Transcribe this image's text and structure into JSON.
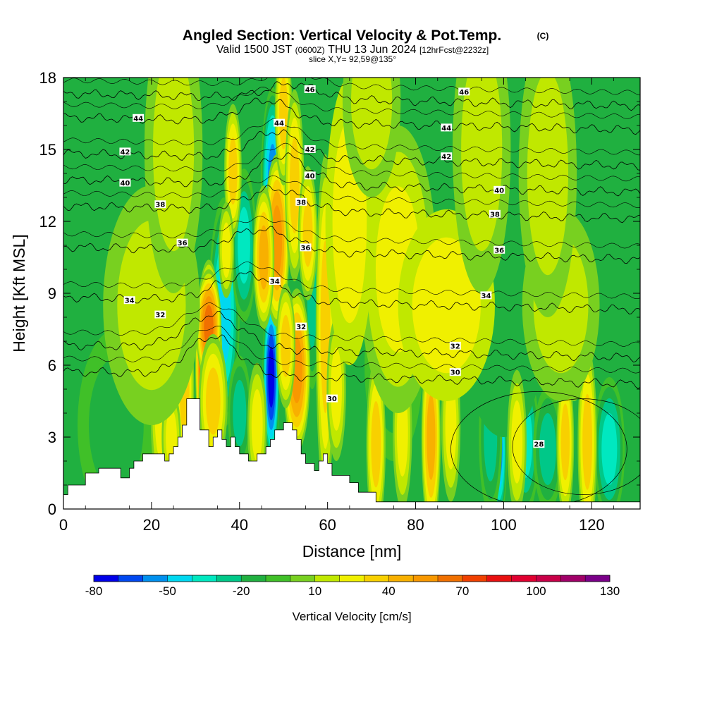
{
  "title": {
    "main": "Angled Section: Vertical Velocity & Pot.Temp.",
    "mark": "(C)",
    "valid_a": "Valid 1500 JST",
    "valid_b": "(0600Z)",
    "valid_c": "THU 13 Jun 2024",
    "valid_d": "[12hrFcst@2232z]",
    "slice": "slice X,Y= 92,59@135°"
  },
  "chart_data": {
    "type": "heatmap",
    "xlabel": "Distance [nm]",
    "ylabel": "Height [Kft MSL]",
    "xlim": [
      0,
      131
    ],
    "ylim": [
      0,
      18
    ],
    "xticks": [
      0,
      20,
      40,
      60,
      80,
      100,
      120
    ],
    "yticks": [
      0,
      3,
      6,
      9,
      12,
      15,
      18
    ],
    "colorbar": {
      "label": "Vertical Velocity [cm/s]",
      "ticks": [
        -80,
        -50,
        -20,
        10,
        40,
        70,
        100,
        130
      ],
      "min": -80,
      "max": 130,
      "step": 10,
      "colors": [
        "#0000e8",
        "#0048f0",
        "#0090ee",
        "#00d8f0",
        "#00e8c0",
        "#00c888",
        "#20b040",
        "#40c028",
        "#78d020",
        "#c0e800",
        "#f0f000",
        "#f8d000",
        "#f8b000",
        "#f89800",
        "#f07000",
        "#f04000",
        "#e81010",
        "#e00030",
        "#c80048",
        "#a00068",
        "#7a0088"
      ]
    },
    "terrain": [
      [
        0,
        0.6
      ],
      [
        1,
        0.6
      ],
      [
        1,
        1
      ],
      [
        5,
        1
      ],
      [
        5,
        1.5
      ],
      [
        8,
        1.5
      ],
      [
        8,
        1.7
      ],
      [
        13,
        1.7
      ],
      [
        13,
        1.3
      ],
      [
        15,
        1.3
      ],
      [
        15,
        1.7
      ],
      [
        16,
        1.7
      ],
      [
        16,
        2
      ],
      [
        18,
        2
      ],
      [
        18,
        2.3
      ],
      [
        23,
        2.3
      ],
      [
        23,
        2
      ],
      [
        24,
        2
      ],
      [
        24,
        2.3
      ],
      [
        25,
        2.3
      ],
      [
        25,
        2.6
      ],
      [
        26,
        2.6
      ],
      [
        26,
        3
      ],
      [
        27,
        3
      ],
      [
        27,
        3.5
      ],
      [
        28,
        3.5
      ],
      [
        28,
        4.6
      ],
      [
        31,
        4.6
      ],
      [
        31,
        3.3
      ],
      [
        33,
        3.3
      ],
      [
        33,
        2.6
      ],
      [
        34,
        2.6
      ],
      [
        34,
        3
      ],
      [
        35,
        3
      ],
      [
        35,
        3.3
      ],
      [
        36,
        3.3
      ],
      [
        36,
        2.9
      ],
      [
        37,
        2.9
      ],
      [
        37,
        2.6
      ],
      [
        38,
        2.6
      ],
      [
        38,
        3
      ],
      [
        39,
        3
      ],
      [
        39,
        2.6
      ],
      [
        40,
        2.6
      ],
      [
        40,
        2.3
      ],
      [
        42,
        2.3
      ],
      [
        42,
        2
      ],
      [
        44,
        2
      ],
      [
        44,
        2.3
      ],
      [
        46,
        2.3
      ],
      [
        46,
        2.6
      ],
      [
        47,
        2.6
      ],
      [
        47,
        2.9
      ],
      [
        48,
        2.9
      ],
      [
        48,
        3.3
      ],
      [
        50,
        3.3
      ],
      [
        50,
        3.6
      ],
      [
        52,
        3.6
      ],
      [
        52,
        3.3
      ],
      [
        53,
        3.3
      ],
      [
        53,
        2.9
      ],
      [
        54,
        2.9
      ],
      [
        54,
        2.3
      ],
      [
        55,
        2.3
      ],
      [
        55,
        1.9
      ],
      [
        57,
        1.9
      ],
      [
        57,
        1.6
      ],
      [
        58,
        1.6
      ],
      [
        58,
        2
      ],
      [
        59,
        2
      ],
      [
        59,
        2.3
      ],
      [
        60,
        2.3
      ],
      [
        60,
        1.9
      ],
      [
        61,
        1.9
      ],
      [
        61,
        1.4
      ],
      [
        65,
        1.4
      ],
      [
        65,
        1.1
      ],
      [
        67,
        1.1
      ],
      [
        67,
        0.7
      ],
      [
        71,
        0.7
      ],
      [
        71,
        0.3
      ],
      [
        131,
        0.3
      ]
    ],
    "updrafts": [
      {
        "x": 33,
        "y": 6,
        "sx": 1.4,
        "sy": 2.2,
        "v": 110
      },
      {
        "x": 33,
        "y": 7.6,
        "sx": 1.3,
        "sy": 1.2,
        "v": 65
      },
      {
        "x": 34,
        "y": 4.5,
        "sx": 1.5,
        "sy": 1.4,
        "v": 40
      },
      {
        "x": 38.5,
        "y": 14.1,
        "sx": 0.9,
        "sy": 1.4,
        "v": 40
      },
      {
        "x": 37,
        "y": 10.8,
        "sx": 0.8,
        "sy": 1,
        "v": 25
      },
      {
        "x": 48.5,
        "y": 11.2,
        "sx": 1.3,
        "sy": 1.8,
        "v": 55
      },
      {
        "x": 45.5,
        "y": 10.5,
        "sx": 1.1,
        "sy": 1.5,
        "v": 45
      },
      {
        "x": 50,
        "y": 16.5,
        "sx": 0.9,
        "sy": 1.5,
        "v": 35
      },
      {
        "x": 52.5,
        "y": 13.5,
        "sx": 1,
        "sy": 2,
        "v": 40
      },
      {
        "x": 53,
        "y": 5.8,
        "sx": 1.4,
        "sy": 1.7,
        "v": 60
      },
      {
        "x": 50.5,
        "y": 6.8,
        "sx": 1,
        "sy": 1.3,
        "v": 40
      },
      {
        "x": 59.5,
        "y": 7.6,
        "sx": 1,
        "sy": 3.6,
        "v": 40
      },
      {
        "x": 55.5,
        "y": 11.5,
        "sx": 1,
        "sy": 1.4,
        "v": 35
      },
      {
        "x": 62,
        "y": 5,
        "sx": 1,
        "sy": 1.5,
        "v": 30
      },
      {
        "x": 22,
        "y": 4,
        "sx": 1,
        "sy": 1.6,
        "v": 30
      },
      {
        "x": 27.5,
        "y": 5,
        "sx": 1,
        "sy": 1.8,
        "v": 35
      },
      {
        "x": 24.5,
        "y": 3,
        "sx": 1,
        "sy": 1,
        "v": 25
      },
      {
        "x": 44,
        "y": 3.5,
        "sx": 1,
        "sy": 1.3,
        "v": 25
      },
      {
        "x": 71,
        "y": 2.7,
        "sx": 1,
        "sy": 1.8,
        "v": 35
      },
      {
        "x": 83.5,
        "y": 3,
        "sx": 1,
        "sy": 2,
        "v": 45
      },
      {
        "x": 77,
        "y": 3.2,
        "sx": 1,
        "sy": 1.6,
        "v": 30
      },
      {
        "x": 88,
        "y": 3.5,
        "sx": 1,
        "sy": 1.6,
        "v": 25
      },
      {
        "x": 114,
        "y": 2.8,
        "sx": 0.9,
        "sy": 1.6,
        "v": 40
      },
      {
        "x": 119,
        "y": 2.8,
        "sx": 1,
        "sy": 2,
        "v": 40
      },
      {
        "x": 103,
        "y": 2.8,
        "sx": 1,
        "sy": 1.5,
        "v": 30
      },
      {
        "x": 116,
        "y": 6.5,
        "sx": 1.2,
        "sy": 1,
        "v": 25
      },
      {
        "x": 76,
        "y": 10,
        "sx": 4,
        "sy": 3,
        "v": 25
      },
      {
        "x": 87,
        "y": 8.5,
        "sx": 5,
        "sy": 2,
        "v": 22
      },
      {
        "x": 113,
        "y": 8.5,
        "sx": 4,
        "sy": 2,
        "v": 20
      },
      {
        "x": 20,
        "y": 8.5,
        "sx": 5,
        "sy": 2.5,
        "v": 20
      },
      {
        "x": 65,
        "y": 12,
        "sx": 2.5,
        "sy": 3,
        "v": 22
      },
      {
        "x": 95,
        "y": 15,
        "sx": 3,
        "sy": 3,
        "v": 18
      },
      {
        "x": 110,
        "y": 14,
        "sx": 3,
        "sy": 3,
        "v": 18
      },
      {
        "x": 25,
        "y": 15,
        "sx": 3,
        "sy": 3,
        "v": 18
      },
      {
        "x": 70,
        "y": 17,
        "sx": 3,
        "sy": 2,
        "v": 18
      }
    ],
    "downdrafts": [
      {
        "x": 47.2,
        "y": 5.5,
        "sx": 0.9,
        "sy": 1.8,
        "v": -75
      },
      {
        "x": 47.5,
        "y": 13.6,
        "sx": 1.2,
        "sy": 2,
        "v": -55
      },
      {
        "x": 36.5,
        "y": 8.2,
        "sx": 1.6,
        "sy": 2.4,
        "v": -50
      },
      {
        "x": 41,
        "y": 11,
        "sx": 1.3,
        "sy": 1.6,
        "v": -35
      },
      {
        "x": 56.5,
        "y": 9,
        "sx": 0.9,
        "sy": 2,
        "v": -25
      },
      {
        "x": 99,
        "y": 2.5,
        "sx": 0.8,
        "sy": 1.5,
        "v": -60
      },
      {
        "x": 105,
        "y": 2.8,
        "sx": 1.4,
        "sy": 1.5,
        "v": -40
      },
      {
        "x": 97,
        "y": 3,
        "sx": 1.2,
        "sy": 1.6,
        "v": -30
      },
      {
        "x": 110,
        "y": 2.5,
        "sx": 1.5,
        "sy": 1.3,
        "v": -30
      },
      {
        "x": 124,
        "y": 2.5,
        "sx": 1.6,
        "sy": 1.5,
        "v": -35
      },
      {
        "x": 40,
        "y": 4,
        "sx": 1.2,
        "sy": 1.2,
        "v": -28
      },
      {
        "x": 12,
        "y": 3.5,
        "sx": 4,
        "sy": 2,
        "v": -15
      },
      {
        "x": 75,
        "y": 6,
        "sx": 3,
        "sy": 2,
        "v": -15
      },
      {
        "x": 90,
        "y": 12,
        "sx": 4,
        "sy": 3,
        "v": -12
      },
      {
        "x": 100,
        "y": 7,
        "sx": 4,
        "sy": 2,
        "v": -12
      }
    ],
    "isentropes": [
      {
        "base": 5.5,
        "amp": 1.6,
        "c": 34,
        "w": 8,
        "labels": [
          {
            "t": "30",
            "x": 61,
            "y": 4.6
          },
          {
            "t": "30",
            "x": 89,
            "y": 5.7
          }
        ]
      },
      {
        "base": 6.6,
        "amp": 1.4,
        "c": 34,
        "w": 9,
        "labels": [
          {
            "t": "32",
            "x": 22,
            "y": 8.1
          },
          {
            "t": "32",
            "x": 54,
            "y": 7.6
          },
          {
            "t": "32",
            "x": 89,
            "y": 6.8
          }
        ]
      },
      {
        "base": 8.6,
        "amp": 1.1,
        "c": 42,
        "w": 10,
        "labels": [
          {
            "t": "34",
            "x": 15,
            "y": 8.7
          },
          {
            "t": "34",
            "x": 48,
            "y": 9.5
          },
          {
            "t": "34",
            "x": 96,
            "y": 8.9
          }
        ]
      },
      {
        "base": 10.7,
        "amp": 0.9,
        "c": 45,
        "w": 10,
        "labels": [
          {
            "t": "36",
            "x": 27,
            "y": 11.1
          },
          {
            "t": "36",
            "x": 55,
            "y": 10.9
          },
          {
            "t": "36",
            "x": 99,
            "y": 10.8
          }
        ]
      },
      {
        "base": 12.4,
        "amp": 0.9,
        "c": 48,
        "w": 9,
        "labels": [
          {
            "t": "38",
            "x": 22,
            "y": 12.7
          },
          {
            "t": "38",
            "x": 54,
            "y": 12.8
          },
          {
            "t": "38",
            "x": 98,
            "y": 12.3
          }
        ]
      },
      {
        "base": 13.5,
        "amp": 1.2,
        "c": 50,
        "w": 8,
        "labels": [
          {
            "t": "40",
            "x": 14,
            "y": 13.6
          },
          {
            "t": "40",
            "x": 56,
            "y": 13.9
          },
          {
            "t": "40",
            "x": 99,
            "y": 13.3
          }
        ]
      },
      {
        "base": 14.6,
        "amp": 1.1,
        "c": 48,
        "w": 8,
        "labels": [
          {
            "t": "42",
            "x": 14,
            "y": 14.9
          },
          {
            "t": "42",
            "x": 56,
            "y": 15
          },
          {
            "t": "42",
            "x": 87,
            "y": 14.7
          }
        ]
      },
      {
        "base": 16.1,
        "amp": 0.9,
        "c": 46,
        "w": 8,
        "labels": [
          {
            "t": "44",
            "x": 17,
            "y": 16.3
          },
          {
            "t": "44",
            "x": 49,
            "y": 16.1
          },
          {
            "t": "44",
            "x": 87,
            "y": 15.9
          }
        ]
      },
      {
        "base": 17.1,
        "amp": 0.6,
        "c": 52,
        "w": 8,
        "labels": [
          {
            "t": "46",
            "x": 56,
            "y": 17.5
          },
          {
            "t": "46",
            "x": 91,
            "y": 17.4
          }
        ]
      }
    ],
    "low_label": {
      "t": "28",
      "x": 108,
      "y": 2.7
    }
  }
}
